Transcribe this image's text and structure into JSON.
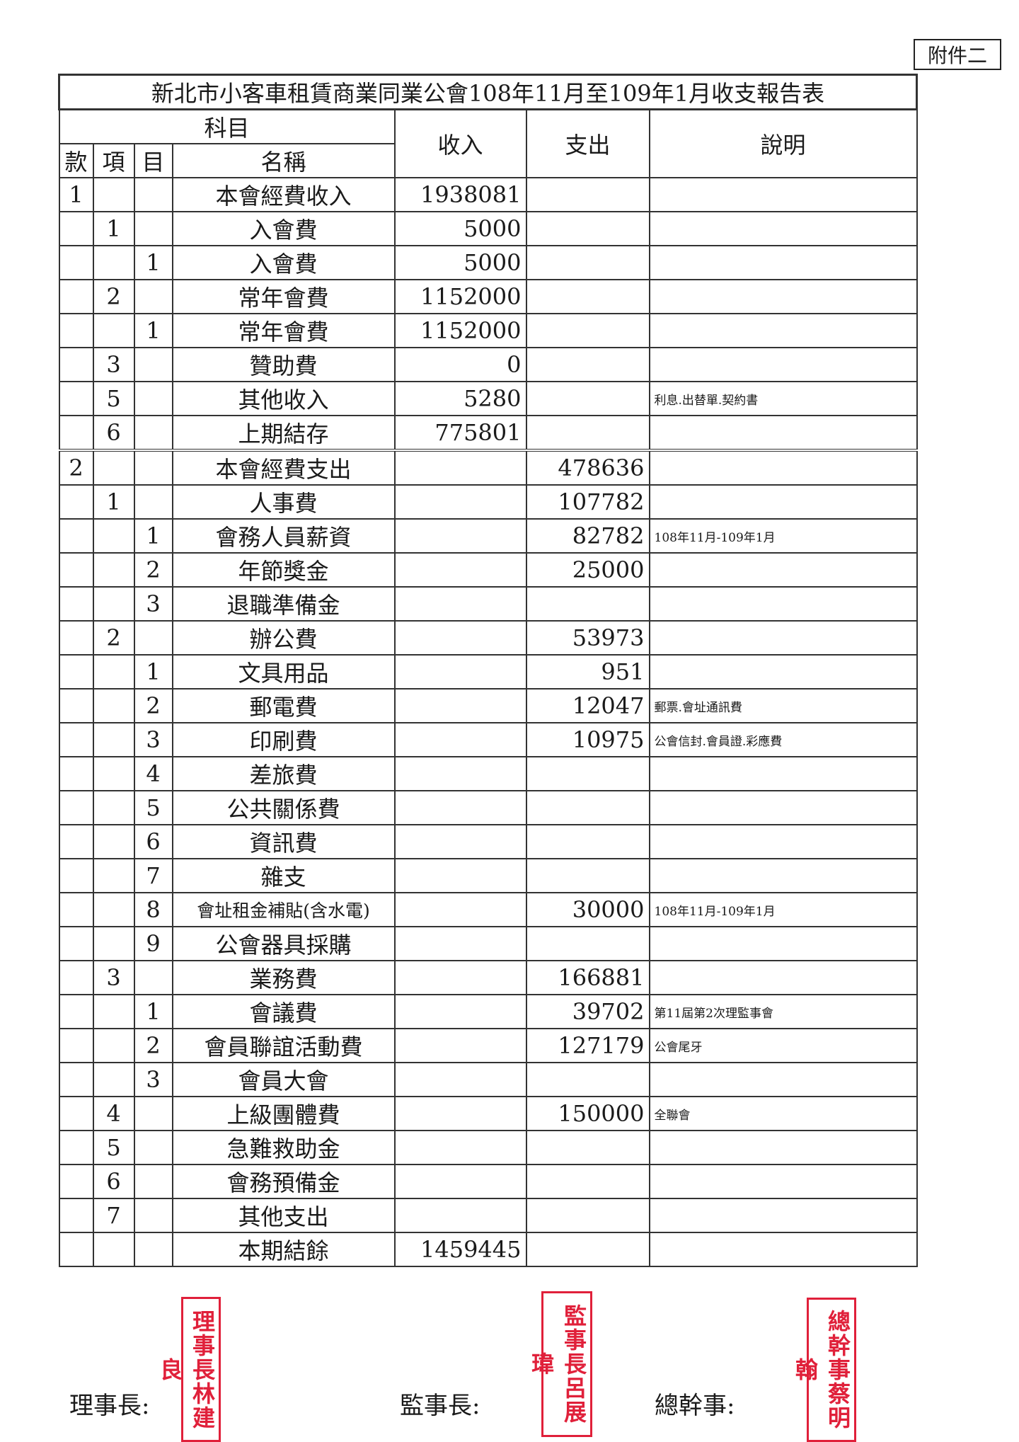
{
  "annex_label": "附件二",
  "title": "新北市小客車租賃商業同業公會108年11月至109年1月收支報告表",
  "headers": {
    "subject": "科目",
    "kuan": "款",
    "xiang": "項",
    "mu": "目",
    "name": "名稱",
    "income": "收入",
    "expense": "支出",
    "note": "說明"
  },
  "rows": [
    {
      "kuan": "1",
      "xiang": "",
      "mu": "",
      "name": "本會經費收入",
      "income": "1938081",
      "expense": "",
      "note": ""
    },
    {
      "kuan": "",
      "xiang": "1",
      "mu": "",
      "name": "入會費",
      "income": "5000",
      "expense": "",
      "note": ""
    },
    {
      "kuan": "",
      "xiang": "",
      "mu": "1",
      "name": "入會費",
      "income": "5000",
      "expense": "",
      "note": ""
    },
    {
      "kuan": "",
      "xiang": "2",
      "mu": "",
      "name": "常年會費",
      "income": "1152000",
      "expense": "",
      "note": ""
    },
    {
      "kuan": "",
      "xiang": "",
      "mu": "1",
      "name": "常年會費",
      "income": "1152000",
      "expense": "",
      "note": ""
    },
    {
      "kuan": "",
      "xiang": "3",
      "mu": "",
      "name": "贊助費",
      "income": "0",
      "expense": "",
      "note": ""
    },
    {
      "kuan": "",
      "xiang": "5",
      "mu": "",
      "name": "其他收入",
      "income": "5280",
      "expense": "",
      "note": "利息.出替單.契約書"
    },
    {
      "kuan": "",
      "xiang": "6",
      "mu": "",
      "name": "上期結存",
      "income": "775801",
      "expense": "",
      "note": ""
    },
    {
      "kuan": "2",
      "xiang": "",
      "mu": "",
      "name": "本會經費支出",
      "income": "",
      "expense": "478636",
      "note": ""
    },
    {
      "kuan": "",
      "xiang": "1",
      "mu": "",
      "name": "人事費",
      "income": "",
      "expense": "107782",
      "note": ""
    },
    {
      "kuan": "",
      "xiang": "",
      "mu": "1",
      "name": "會務人員薪資",
      "income": "",
      "expense": "82782",
      "note": "108年11月-109年1月"
    },
    {
      "kuan": "",
      "xiang": "",
      "mu": "2",
      "name": "年節獎金",
      "income": "",
      "expense": "25000",
      "note": ""
    },
    {
      "kuan": "",
      "xiang": "",
      "mu": "3",
      "name": "退職準備金",
      "income": "",
      "expense": "",
      "note": ""
    },
    {
      "kuan": "",
      "xiang": "2",
      "mu": "",
      "name": "辦公費",
      "income": "",
      "expense": "53973",
      "note": ""
    },
    {
      "kuan": "",
      "xiang": "",
      "mu": "1",
      "name": "文具用品",
      "income": "",
      "expense": "951",
      "note": ""
    },
    {
      "kuan": "",
      "xiang": "",
      "mu": "2",
      "name": "郵電費",
      "income": "",
      "expense": "12047",
      "note": "郵票.會址通訊費"
    },
    {
      "kuan": "",
      "xiang": "",
      "mu": "3",
      "name": "印刷費",
      "income": "",
      "expense": "10975",
      "note": "公會信封.會員證.彩應費"
    },
    {
      "kuan": "",
      "xiang": "",
      "mu": "4",
      "name": "差旅費",
      "income": "",
      "expense": "",
      "note": ""
    },
    {
      "kuan": "",
      "xiang": "",
      "mu": "5",
      "name": "公共關係費",
      "income": "",
      "expense": "",
      "note": ""
    },
    {
      "kuan": "",
      "xiang": "",
      "mu": "6",
      "name": "資訊費",
      "income": "",
      "expense": "",
      "note": ""
    },
    {
      "kuan": "",
      "xiang": "",
      "mu": "7",
      "name": "雜支",
      "income": "",
      "expense": "",
      "note": ""
    },
    {
      "kuan": "",
      "xiang": "",
      "mu": "8",
      "name": "會址租金補貼(含水電)",
      "income": "",
      "expense": "30000",
      "note": "108年11月-109年1月"
    },
    {
      "kuan": "",
      "xiang": "",
      "mu": "9",
      "name": "公會器具採購",
      "income": "",
      "expense": "",
      "note": ""
    },
    {
      "kuan": "",
      "xiang": "3",
      "mu": "",
      "name": "業務費",
      "income": "",
      "expense": "166881",
      "note": ""
    },
    {
      "kuan": "",
      "xiang": "",
      "mu": "1",
      "name": "會議費",
      "income": "",
      "expense": "39702",
      "note": "第11屆第2次理監事會"
    },
    {
      "kuan": "",
      "xiang": "",
      "mu": "2",
      "name": "會員聯誼活動費",
      "income": "",
      "expense": "127179",
      "note": "公會尾牙"
    },
    {
      "kuan": "",
      "xiang": "",
      "mu": "3",
      "name": "會員大會",
      "income": "",
      "expense": "",
      "note": ""
    },
    {
      "kuan": "",
      "xiang": "4",
      "mu": "",
      "name": "上級團體費",
      "income": "",
      "expense": "150000",
      "note": "全聯會"
    },
    {
      "kuan": "",
      "xiang": "5",
      "mu": "",
      "name": "急難救助金",
      "income": "",
      "expense": "",
      "note": ""
    },
    {
      "kuan": "",
      "xiang": "6",
      "mu": "",
      "name": "會務預備金",
      "income": "",
      "expense": "",
      "note": ""
    },
    {
      "kuan": "",
      "xiang": "7",
      "mu": "",
      "name": "其他支出",
      "income": "",
      "expense": "",
      "note": ""
    },
    {
      "kuan": "",
      "xiang": "",
      "mu": "",
      "name": "本期結餘",
      "income": "1459445",
      "expense": "",
      "note": ""
    }
  ],
  "signatures": {
    "chairman_label": "理事長:",
    "supervisor_label": "監事長:",
    "secretary_label": "總幹事:",
    "chairman_stamp": "理事長林建良",
    "supervisor_stamp": "監事長呂展瑋",
    "secretary_stamp": "總幹事蔡明翰",
    "stamp_color": "#e0203a"
  }
}
